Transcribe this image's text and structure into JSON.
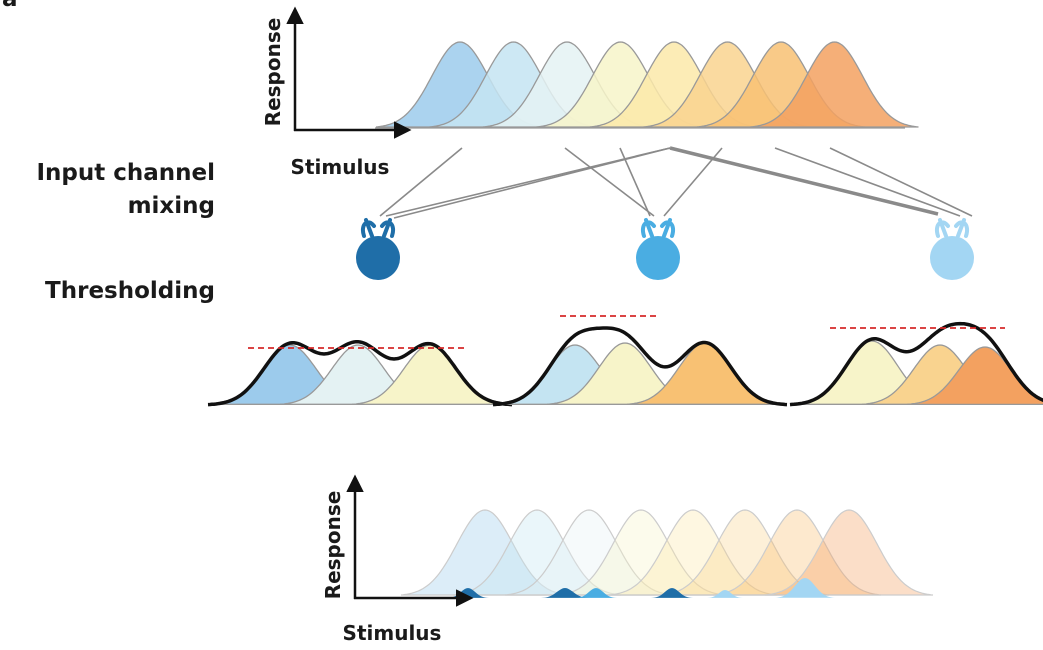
{
  "panel_label": "a",
  "top_axes": {
    "y_label": "Response",
    "x_label": "Stimulus"
  },
  "mixing_label": [
    "Input channel",
    "mixing"
  ],
  "thresholding_label": "Thresholding",
  "bottom_axes": {
    "y_label": "Response",
    "x_label": "Stimulus"
  }
}
